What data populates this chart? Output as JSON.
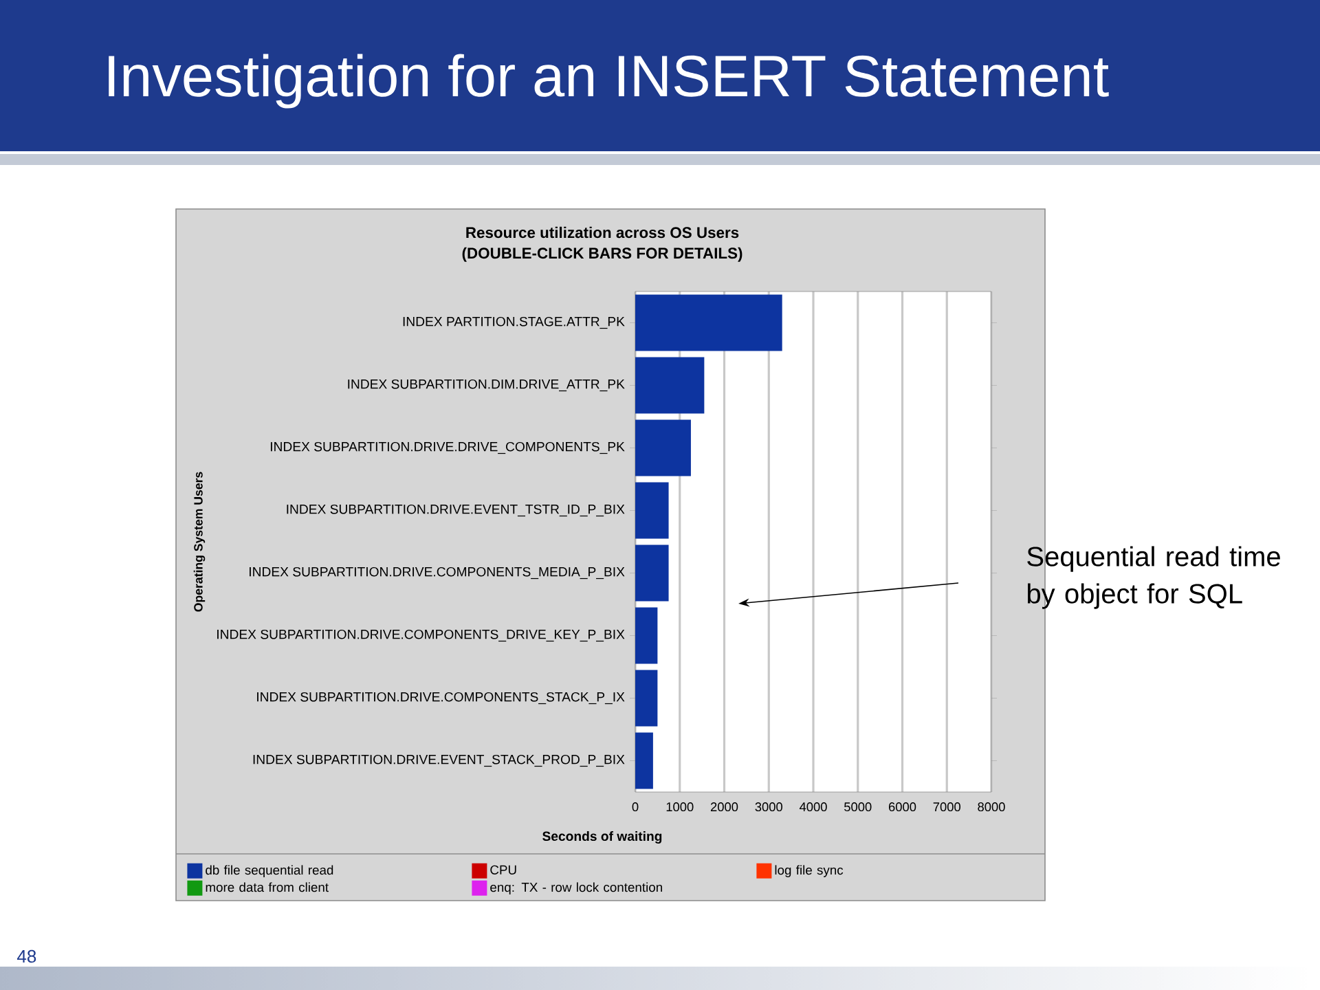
{
  "chart_data": {
    "type": "bar",
    "orientation": "horizontal",
    "title": "Investigation for an INSERT Statement",
    "subtitle": "Resource utilization across OS Users",
    "xlabel": "Seconds of waiting",
    "ylabel": "Operating System Users",
    "categories": [
      "INDEX PARTITION.STAGE.ATTR_PK",
      "INDEX SUBPARTITION.DIM.DRIVE_ATTR_PK",
      "INDEX SUBPARTITION.DRIVE.DRIVE_COMPONENTS_PK",
      "INDEX SUBPARTITION.DRIVE.EVENT_TSTR_ID_P_BIX",
      "INDEX SUBPARTITION.DRIVE.COMPONENTS_MEDIA_P_BIX",
      "INDEX SUBPARTITION.DRIVE.COMPONENTS_DRIVE_KEY_P_BIX",
      "INDEX SUBPARTITION.DRIVE.COMPONENTS_STACK_P_IX",
      "INDEX SUBPARTITION.DRIVE.EVENT_STACK_PROD_P_BIX"
    ],
    "series": [
      {
        "name": "db file sequential read",
        "color": "#0d34a0",
        "values": [
          3300,
          1550,
          1250,
          750,
          750,
          500,
          500,
          400
        ]
      },
      {
        "name": "CPU",
        "color": "#cc0000",
        "values": [
          null,
          null,
          null,
          null,
          null,
          null,
          null,
          null
        ]
      },
      {
        "name": "log file sync",
        "color": "#ff3300",
        "values": [
          null,
          null,
          null,
          null,
          null,
          null,
          null,
          null
        ]
      },
      {
        "name": "more data from client",
        "color": "#119911",
        "values": [
          null,
          null,
          null,
          null,
          null,
          null,
          null,
          null
        ]
      },
      {
        "name": "enq: TX - row lock contention",
        "color": "#dd22ee",
        "values": [
          null,
          null,
          null,
          null,
          null,
          null,
          null,
          null
        ]
      }
    ],
    "xlim": [
      0,
      8000
    ],
    "xticks": [
      0,
      1000,
      2000,
      3000,
      4000,
      5000,
      6000,
      7000,
      8000
    ],
    "grid": "x",
    "legend": "bottom",
    "annotations": [
      "(DOUBLE-CLICK BARS FOR DETAILS)",
      "Sequential read time by object for SQL",
      "48"
    ]
  }
}
